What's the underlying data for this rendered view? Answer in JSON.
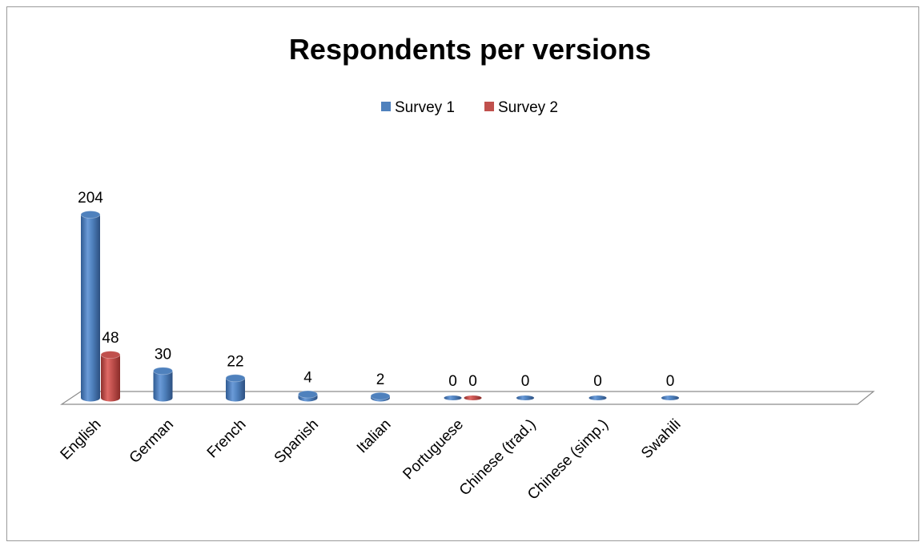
{
  "chart_data": {
    "type": "bar",
    "title": "Respondents per versions",
    "categories": [
      "English",
      "German",
      "French",
      "Spanish",
      "Italian",
      "Portuguese",
      "Chinese (trad.)",
      "Chinese (simp.)",
      "Swahili"
    ],
    "series": [
      {
        "name": "Survey 1",
        "color": "#4f81bd",
        "values": [
          204,
          30,
          22,
          4,
          2,
          0,
          0,
          0,
          0
        ]
      },
      {
        "name": "Survey 2",
        "color": "#c0504d",
        "values": [
          48,
          null,
          null,
          null,
          null,
          0,
          null,
          null,
          null
        ]
      }
    ],
    "grid": false,
    "legend_position": "top"
  }
}
